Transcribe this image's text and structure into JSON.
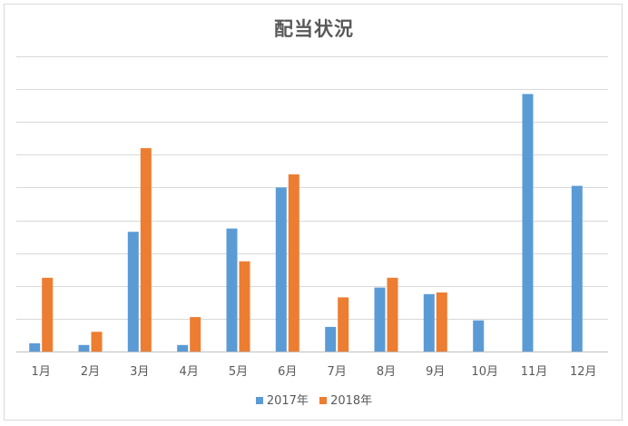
{
  "chart_data": {
    "type": "bar",
    "title": "配当状況",
    "categories": [
      "1月",
      "2月",
      "3月",
      "4月",
      "5月",
      "6月",
      "7月",
      "8月",
      "9月",
      "10月",
      "11月",
      "12月"
    ],
    "series": [
      {
        "name": "2017年",
        "color": "#5b9bd5",
        "values": [
          0.5,
          0.4,
          7.3,
          0.4,
          7.5,
          10.0,
          1.5,
          3.9,
          3.5,
          1.9,
          15.7,
          10.1
        ]
      },
      {
        "name": "2018年",
        "color": "#ed7d31",
        "values": [
          4.5,
          1.2,
          12.4,
          2.1,
          5.5,
          10.8,
          3.3,
          4.5,
          3.6,
          0,
          0,
          0
        ]
      }
    ],
    "ylim": [
      0,
      18
    ],
    "gridlines": true,
    "y_tick_labels_visible": false,
    "legend_position": "bottom"
  }
}
